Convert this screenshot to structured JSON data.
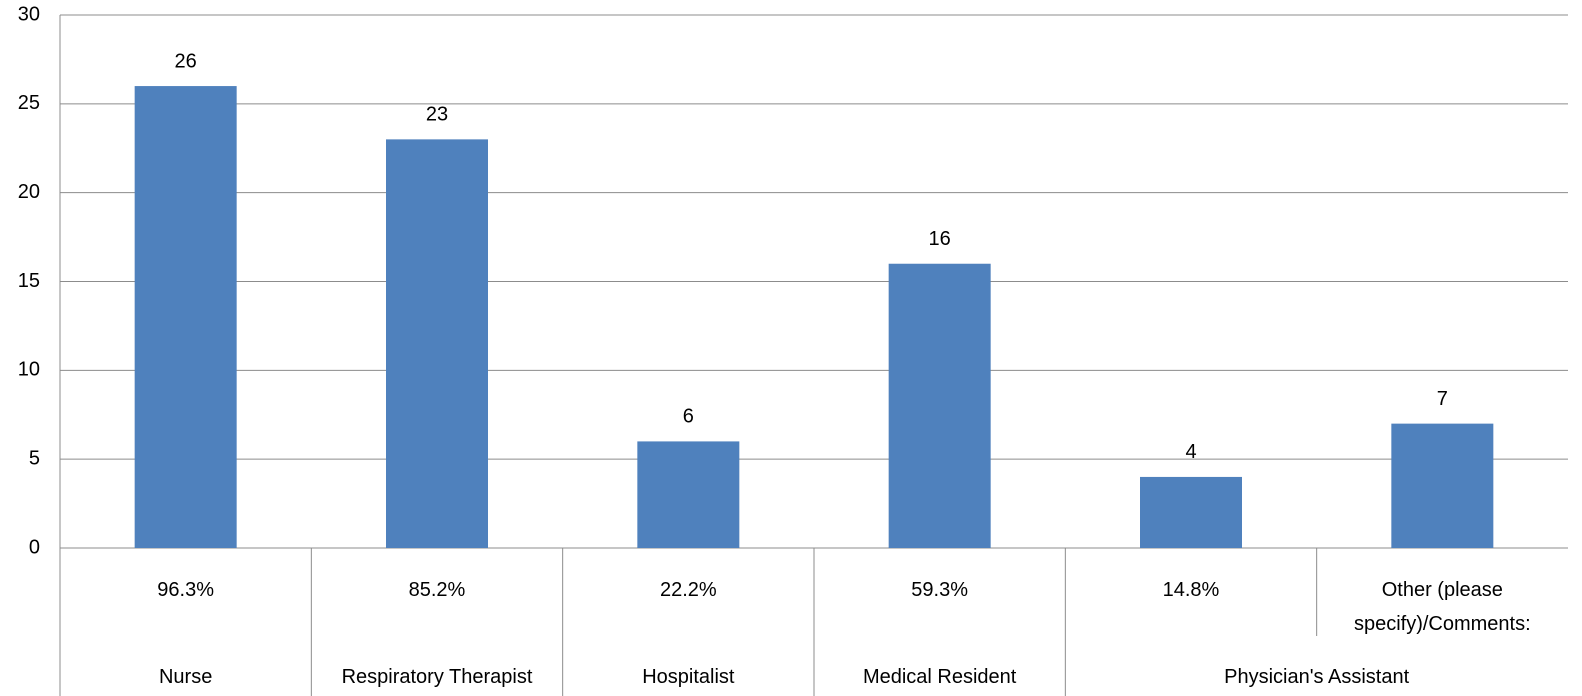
{
  "chart_data": {
    "type": "bar",
    "categories": [
      "96.3%",
      "85.2%",
      "22.2%",
      "59.3%",
      "14.8%",
      "Other (please specify)/Comments:"
    ],
    "groups": [
      "Nurse",
      "Respiratory Therapist",
      "Hospitalist",
      "Medical Resident",
      "Physician's Assistant",
      null
    ],
    "values": [
      26,
      23,
      6,
      16,
      4,
      7
    ],
    "color": "#4f81bd",
    "ylim": [
      0,
      30
    ],
    "yticks": [
      0,
      5,
      10,
      15,
      20,
      25,
      30
    ],
    "grid": true
  }
}
